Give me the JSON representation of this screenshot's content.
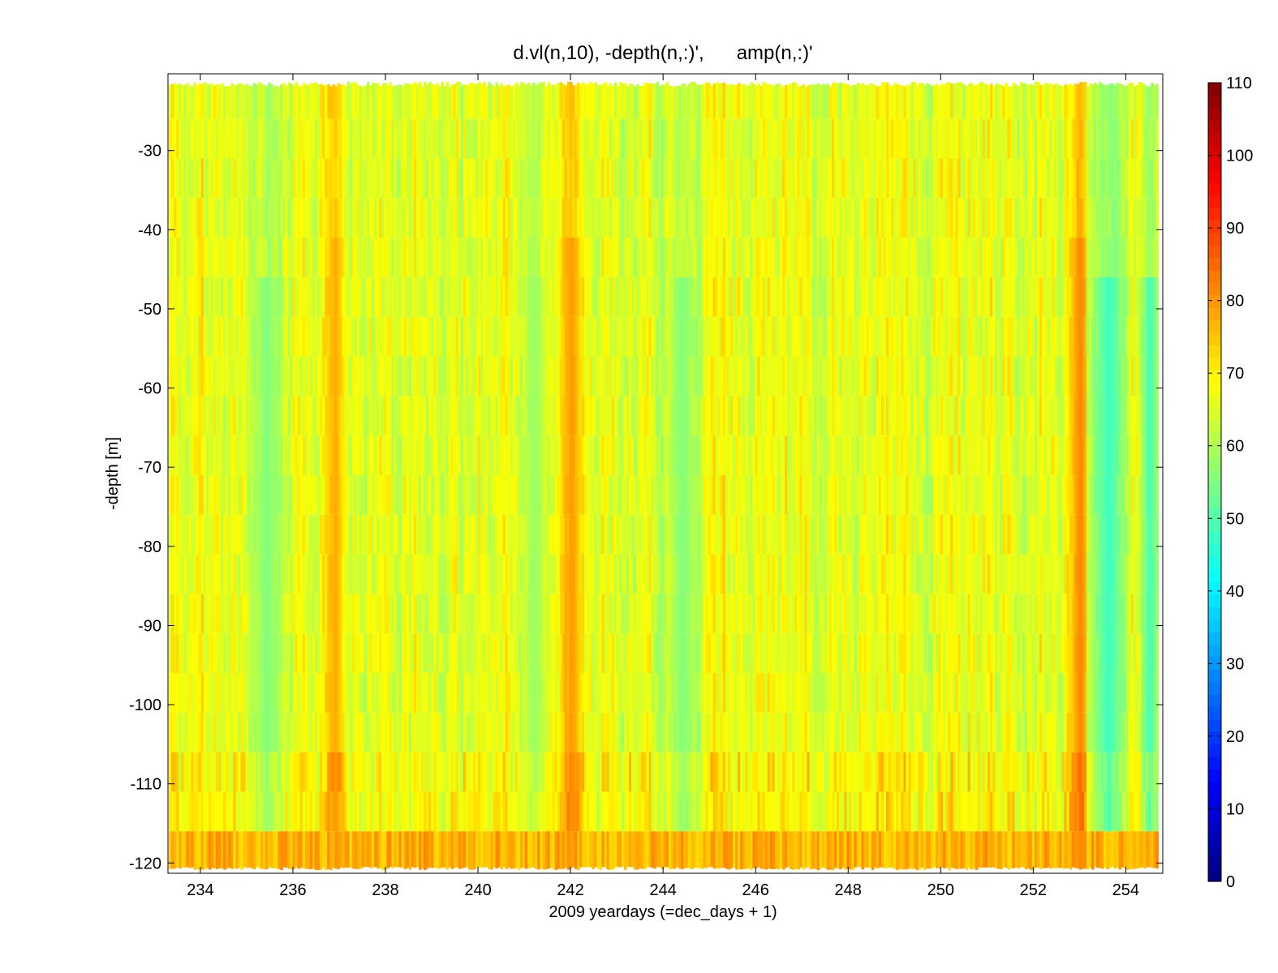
{
  "chart_data": {
    "type": "heatmap",
    "title": "d.vl(n,10), -depth(n,:)',      amp(n,:)'",
    "xlabel": "2009 yeardays (=dec_days + 1)",
    "ylabel": "-depth [m]",
    "xlim": [
      233.3,
      254.8
    ],
    "ylim": [
      -121.3,
      -20.3
    ],
    "x_ticks": [
      234,
      236,
      238,
      240,
      242,
      244,
      246,
      248,
      250,
      252,
      254
    ],
    "y_ticks": [
      -30,
      -40,
      -50,
      -60,
      -70,
      -80,
      -90,
      -100,
      -110,
      -120
    ],
    "colorbar": {
      "lim": [
        0,
        110
      ],
      "ticks": [
        0,
        10,
        20,
        30,
        40,
        50,
        60,
        70,
        80,
        90,
        100,
        110
      ],
      "colormap": "jet"
    },
    "depth_bins": [
      -21,
      -26,
      -31,
      -36,
      -41,
      -46,
      -51,
      -56,
      -61,
      -66,
      -71,
      -76,
      -81,
      -86,
      -91,
      -96,
      -101,
      -106,
      -111,
      -116,
      -121
    ],
    "amplitude_features": [
      {
        "x_center": 236.9,
        "x_width": 0.3,
        "amp": 78
      },
      {
        "x_center": 235.4,
        "x_width": 0.5,
        "amp": 55
      },
      {
        "x_center": 241.2,
        "x_width": 0.4,
        "amp": 58
      },
      {
        "x_center": 242.0,
        "x_width": 0.4,
        "amp": 80
      },
      {
        "x_center": 244.4,
        "x_width": 0.5,
        "amp": 55
      },
      {
        "x_center": 253.0,
        "x_width": 0.4,
        "amp": 82
      },
      {
        "x_center": 253.6,
        "x_width": 0.5,
        "amp": 47
      },
      {
        "x_center": 254.5,
        "x_width": 0.3,
        "amp": 48
      }
    ],
    "bottom_layer": {
      "depth_from": -116,
      "depth_to": -121,
      "amp": 78
    }
  }
}
